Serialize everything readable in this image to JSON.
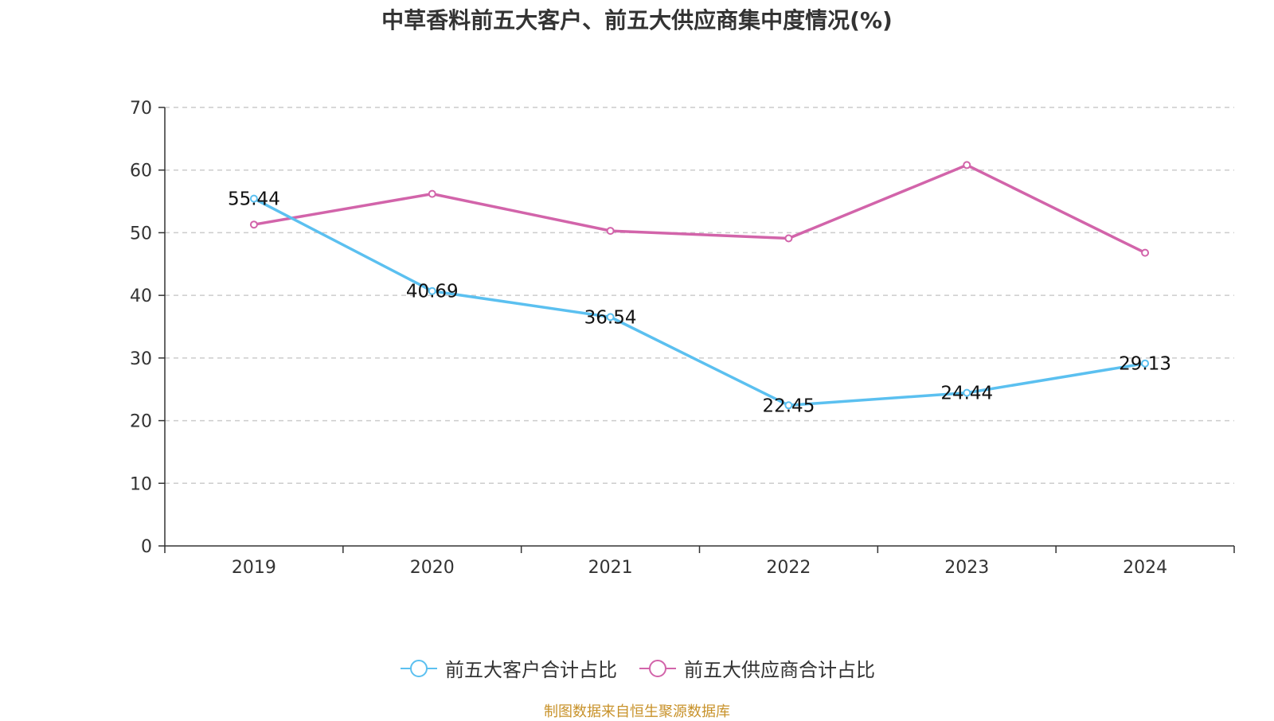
{
  "title": "中草香料前五大客户、前五大供应商集中度情况(%)",
  "source": "制图数据来自恒生聚源数据库",
  "chart_data": {
    "type": "line",
    "title": "中草香料前五大客户、前五大供应商集中度情况(%)",
    "categories": [
      "2019",
      "2020",
      "2021",
      "2022",
      "2023",
      "2024"
    ],
    "ylim": [
      0,
      70
    ],
    "yticks": [
      0,
      10,
      20,
      30,
      40,
      50,
      60,
      70
    ],
    "grid": true,
    "legend_position": "bottom",
    "series": [
      {
        "name": "前五大客户合计占比",
        "color": "#5bc0f0",
        "values": [
          55.44,
          40.69,
          36.54,
          22.45,
          24.44,
          29.13
        ],
        "labels": [
          "55.44",
          "40.69",
          "36.54",
          "22.45",
          "24.44",
          "29.13"
        ]
      },
      {
        "name": "前五大供应商合计占比",
        "color": "#d264aa",
        "values": [
          51.3,
          56.2,
          50.3,
          49.1,
          60.8,
          46.8
        ],
        "labels": []
      }
    ]
  }
}
